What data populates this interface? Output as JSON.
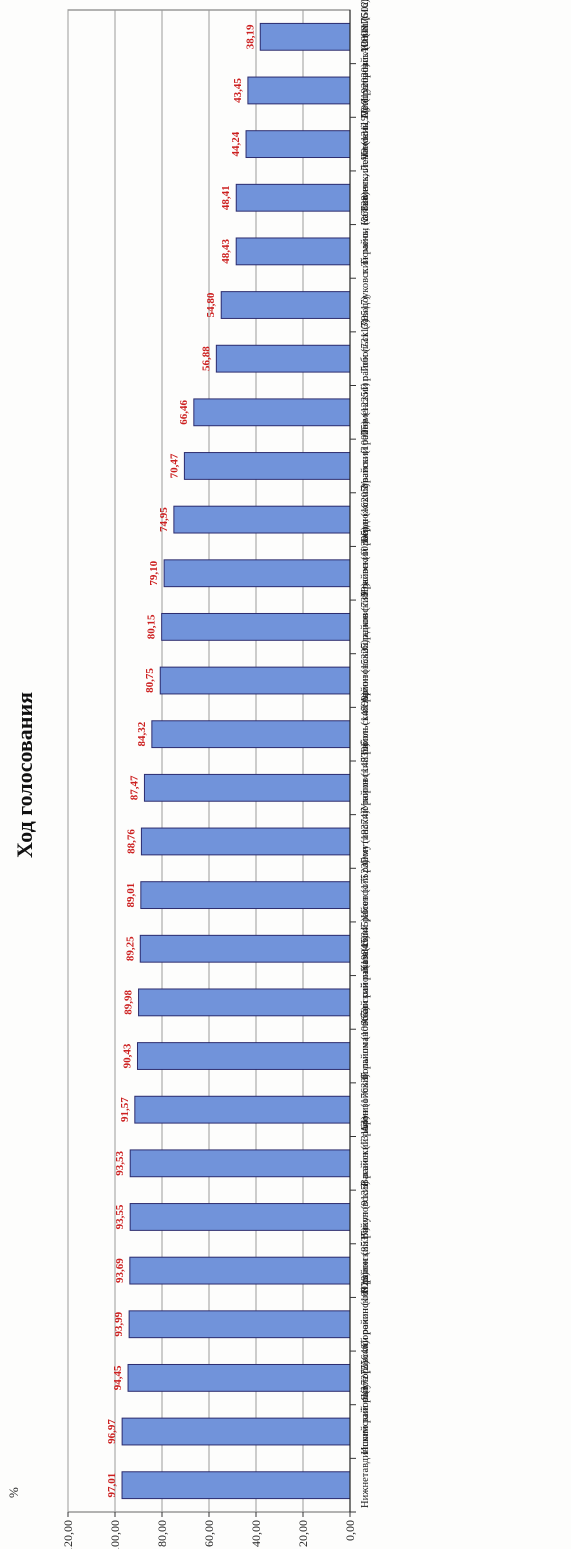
{
  "page": {
    "title": "Ход голосования",
    "unit": "%"
  },
  "chart_data": {
    "type": "bar",
    "orientation": "horizontal",
    "title": "Ход голосования",
    "ylabel": "%",
    "ylim": [
      0,
      120
    ],
    "ticks": [
      "0,00",
      "20,00",
      "40,00",
      "60,00",
      "80,00",
      "100,00",
      "120,00"
    ],
    "grid": true,
    "bar_color": "#7193da",
    "label_color": "#cc1f1f",
    "categories": [
      "Нижнетавдинский район (17275)",
      "Ишимский район (25646)",
      "Ялуторовский район (10928)",
      "Сорокинский район (8537)",
      "Юргинский район (9135)",
      "Викуловский район (13164)",
      "Вагайский район (17633)",
      "Армизонский район (10667)",
      "Голышмановский район (19845)",
      "Абатский район (16345)",
      "Казанский район (17523)",
      "Исетский район (18374)",
      "Омутинский район (14839)",
      "Упоровский район (14890)",
      "Тобольский район (15325)",
      "Армизонский район (7399)",
      "Сладковский район (10306)",
      "Ярковский район (16205)",
      "Бердюжский район (10005)",
      "Уватский район (12251)",
      "Тюменский район (73117)",
      "г. Тобольск (79517)",
      "Заводоуковский район (36828)",
      "г. Тюмень, Калининский АО (131197)",
      "г. Тюмень, Ленинский АО (192020)",
      "г. Тюмень, Центральный АО (117616)",
      "г. Ялуторовск (28081)",
      "г. Ишим (50229)"
    ],
    "values": [
      97.01,
      96.97,
      94.45,
      93.99,
      93.69,
      93.55,
      93.53,
      91.57,
      90.43,
      89.98,
      89.25,
      89.01,
      88.76,
      87.47,
      84.32,
      80.75,
      80.15,
      79.1,
      74.95,
      70.47,
      66.46,
      56.88,
      54.8,
      48.43,
      48.41,
      44.24,
      43.45,
      38.19
    ],
    "value_labels": [
      "97,01",
      "96,97",
      "94,45",
      "93,99",
      "93,69",
      "93,55",
      "93,53",
      "91,57",
      "90,43",
      "89,98",
      "89,25",
      "89,01",
      "88,76",
      "87,47",
      "84,32",
      "80,75",
      "80,15",
      "79,10",
      "74,95",
      "70,47",
      "66,46",
      "56,88",
      "54,80",
      "48,43",
      "48,41",
      "44,24",
      "43,45",
      "38,19"
    ]
  }
}
